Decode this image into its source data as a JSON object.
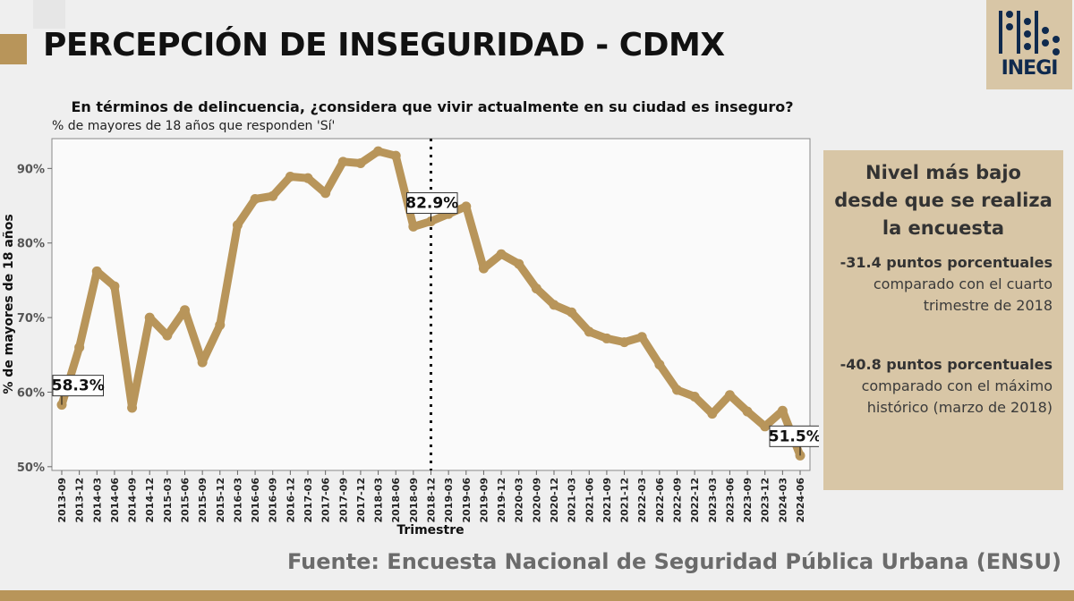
{
  "header": {
    "title": "PERCEPCIÓN DE INSEGURIDAD - CDMX",
    "logo_text": "INEGI"
  },
  "chart_header": {
    "question": "En términos de delincuencia, ¿considera que vivir actualmente en su ciudad es inseguro?",
    "subtitle": "% de mayores de 18 años que responden 'Sí'"
  },
  "info": {
    "heading": "Nivel más bajo desde que se realiza la encuesta",
    "stat1_bold": "-31.4 puntos porcentuales",
    "stat1_text": "comparado con el cuarto trimestre de 2018",
    "stat2_bold": "-40.8 puntos porcentuales",
    "stat2_text": "comparado con el máximo histórico (marzo de 2018)"
  },
  "footer": {
    "source": "Fuente: Encuesta Nacional de Seguridad Pública Urbana (ENSU)"
  },
  "colors": {
    "accent": "#b8955a",
    "panel": "#d8c6a6",
    "line": "#b8955a",
    "background": "#efefef",
    "logo_text": "#0f2a4e"
  },
  "chart_data": {
    "type": "line",
    "xlabel": "Trimestre",
    "ylabel": "% de mayores de 18 años",
    "ylim": [
      49.5,
      94
    ],
    "yticks": [
      50,
      60,
      70,
      80,
      90
    ],
    "ytick_labels": [
      "50%",
      "60%",
      "70%",
      "80%",
      "90%"
    ],
    "grid": false,
    "x": [
      "2013-09",
      "2013-12",
      "2014-03",
      "2014-06",
      "2014-09",
      "2014-12",
      "2015-03",
      "2015-06",
      "2015-09",
      "2015-12",
      "2016-03",
      "2016-06",
      "2016-09",
      "2016-12",
      "2017-03",
      "2017-06",
      "2017-09",
      "2017-12",
      "2018-03",
      "2018-06",
      "2018-09",
      "2018-12",
      "2019-03",
      "2019-06",
      "2019-09",
      "2019-12",
      "2020-03",
      "2020-09",
      "2020-12",
      "2021-03",
      "2021-06",
      "2021-09",
      "2021-12",
      "2022-03",
      "2022-06",
      "2022-09",
      "2022-12",
      "2023-03",
      "2023-06",
      "2023-09",
      "2023-12",
      "2024-03",
      "2024-06"
    ],
    "series": [
      {
        "values": [
          58.3,
          66.0,
          76.2,
          74.2,
          57.9,
          70.0,
          67.6,
          71.0,
          64.0,
          69.0,
          82.4,
          85.9,
          86.3,
          88.9,
          88.7,
          86.7,
          90.9,
          90.7,
          92.3,
          91.7,
          82.2,
          82.9,
          83.9,
          84.9,
          76.6,
          78.5,
          77.2,
          73.9,
          71.7,
          70.7,
          68.1,
          67.2,
          66.7,
          67.4,
          63.7,
          60.3,
          59.4,
          57.1,
          59.6,
          57.4,
          55.4,
          57.5,
          51.5
        ]
      }
    ],
    "labels": [
      {
        "x": "2013-09",
        "text": "58.3%"
      },
      {
        "x": "2018-12",
        "text": "82.9%"
      },
      {
        "x": "2024-06",
        "text": "51.5%"
      }
    ],
    "reference_line": {
      "x": "2018-12",
      "style": "dotted"
    }
  }
}
